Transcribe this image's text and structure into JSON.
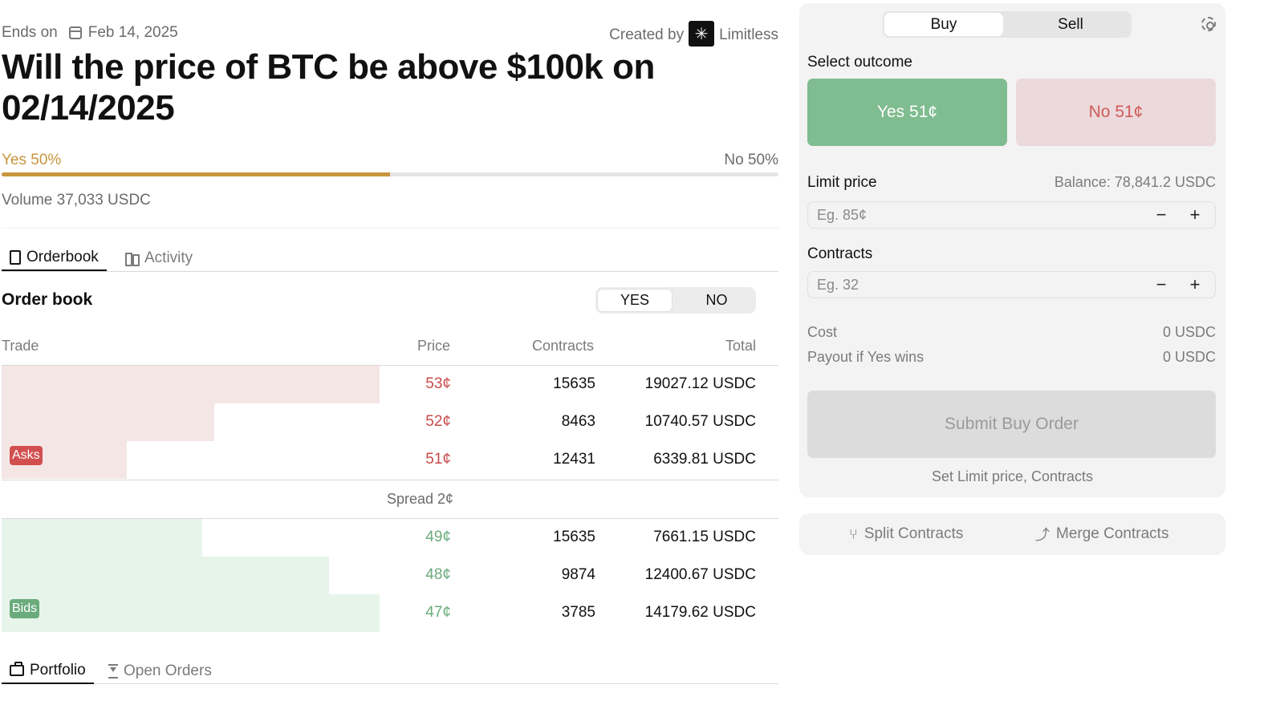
{
  "market": {
    "ends_label": "Ends on",
    "ends_date": "Feb 14, 2025",
    "created_by_label": "Created by",
    "creator_name": "Limitless",
    "title": "Will the price of BTC be above $100k on 02/14/2025",
    "yes_prob_label": "Yes 50%",
    "no_prob_label": "No 50%",
    "yes_probability": 0.5,
    "volume": "Volume 37,033 USDC"
  },
  "tabs": {
    "orderbook": "Orderbook",
    "activity": "Activity"
  },
  "orderbook": {
    "title": "Order book",
    "toggle_yes": "YES",
    "toggle_no": "NO",
    "headers": {
      "trade": "Trade",
      "price": "Price",
      "contracts": "Contracts",
      "total": "Total"
    },
    "asks_label": "Asks",
    "bids_label": "Bids",
    "asks": [
      {
        "price": "53¢",
        "contracts": "15635",
        "total": "19027.12 USDC",
        "depth": 0.487
      },
      {
        "price": "52¢",
        "contracts": "8463",
        "total": "10740.57 USDC",
        "depth": 0.274
      },
      {
        "price": "51¢",
        "contracts": "12431",
        "total": "6339.81 USDC",
        "depth": 0.161
      }
    ],
    "spread": "Spread 2¢",
    "bids": [
      {
        "price": "49¢",
        "contracts": "15635",
        "total": "7661.15 USDC",
        "depth": 0.258
      },
      {
        "price": "48¢",
        "contracts": "9874",
        "total": "12400.67 USDC",
        "depth": 0.421
      },
      {
        "price": "47¢",
        "contracts": "3785",
        "total": "14179.62 USDC",
        "depth": 0.487
      }
    ]
  },
  "bottom_tabs": {
    "portfolio": "Portfolio",
    "open_orders": "Open Orders"
  },
  "trade_panel": {
    "buy": "Buy",
    "sell": "Sell",
    "select_outcome": "Select outcome",
    "yes_button": "Yes 51¢",
    "no_button": "No 51¢",
    "limit_price_label": "Limit price",
    "balance": "Balance: 78,841.2 USDC",
    "limit_placeholder": "Eg. 85¢",
    "contracts_label": "Contracts",
    "contracts_placeholder": "Eg. 32",
    "minus": "−",
    "plus": "+",
    "cost_label": "Cost",
    "cost_value": "0 USDC",
    "payout_label": "Payout if Yes wins",
    "payout_value": "0 USDC",
    "submit": "Submit Buy Order",
    "hint": "Set Limit price, Contracts"
  },
  "contracts_panel": {
    "split": "Split Contracts",
    "merge": "Merge Contracts"
  },
  "colors": {
    "yes_accent": "#c9953e",
    "ask_red": "#c84a4a",
    "bid_green": "#6aab7c",
    "yes_button": "#7fbc8f",
    "no_button": "#ecd9db"
  }
}
